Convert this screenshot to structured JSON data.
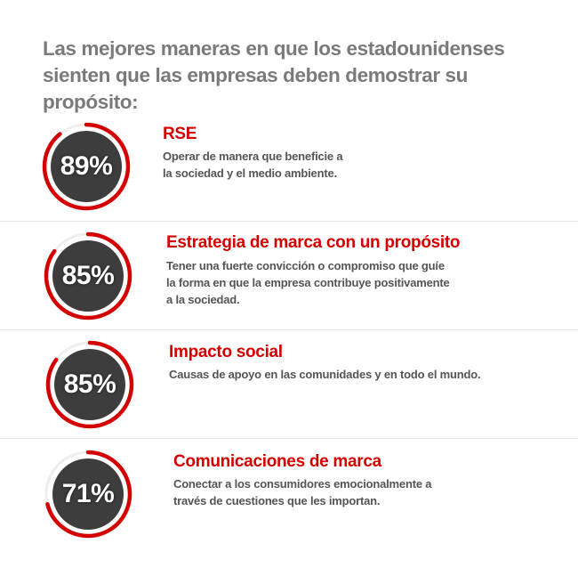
{
  "title": "Las mejores maneras en que los estadounidenses sienten que las empresas deben demostrar su propósito:",
  "colors": {
    "accent": "#d40000",
    "title": "#7a7a7a",
    "text": "#555555",
    "blot": "#3d3d3d"
  },
  "items": [
    {
      "percent": "89%",
      "value": 89,
      "title": "RSE",
      "description": "Operar de manera que beneficie a la sociedad y el medio ambiente."
    },
    {
      "percent": "85%",
      "value": 85,
      "title": "Estrategia de marca con un propósito",
      "description": "Tener una fuerte convicción o compromiso que guíe la forma en que la empresa contribuye positivamente a la sociedad."
    },
    {
      "percent": "85%",
      "value": 85,
      "title": "Impacto social",
      "description": "Causas de apoyo en las comunidades y en todo el mundo."
    },
    {
      "percent": "71%",
      "value": 71,
      "title": "Comunicaciones de marca",
      "description": "Conectar a los consumidores emocionalmente a través de cuestiones que les importan."
    }
  ]
}
